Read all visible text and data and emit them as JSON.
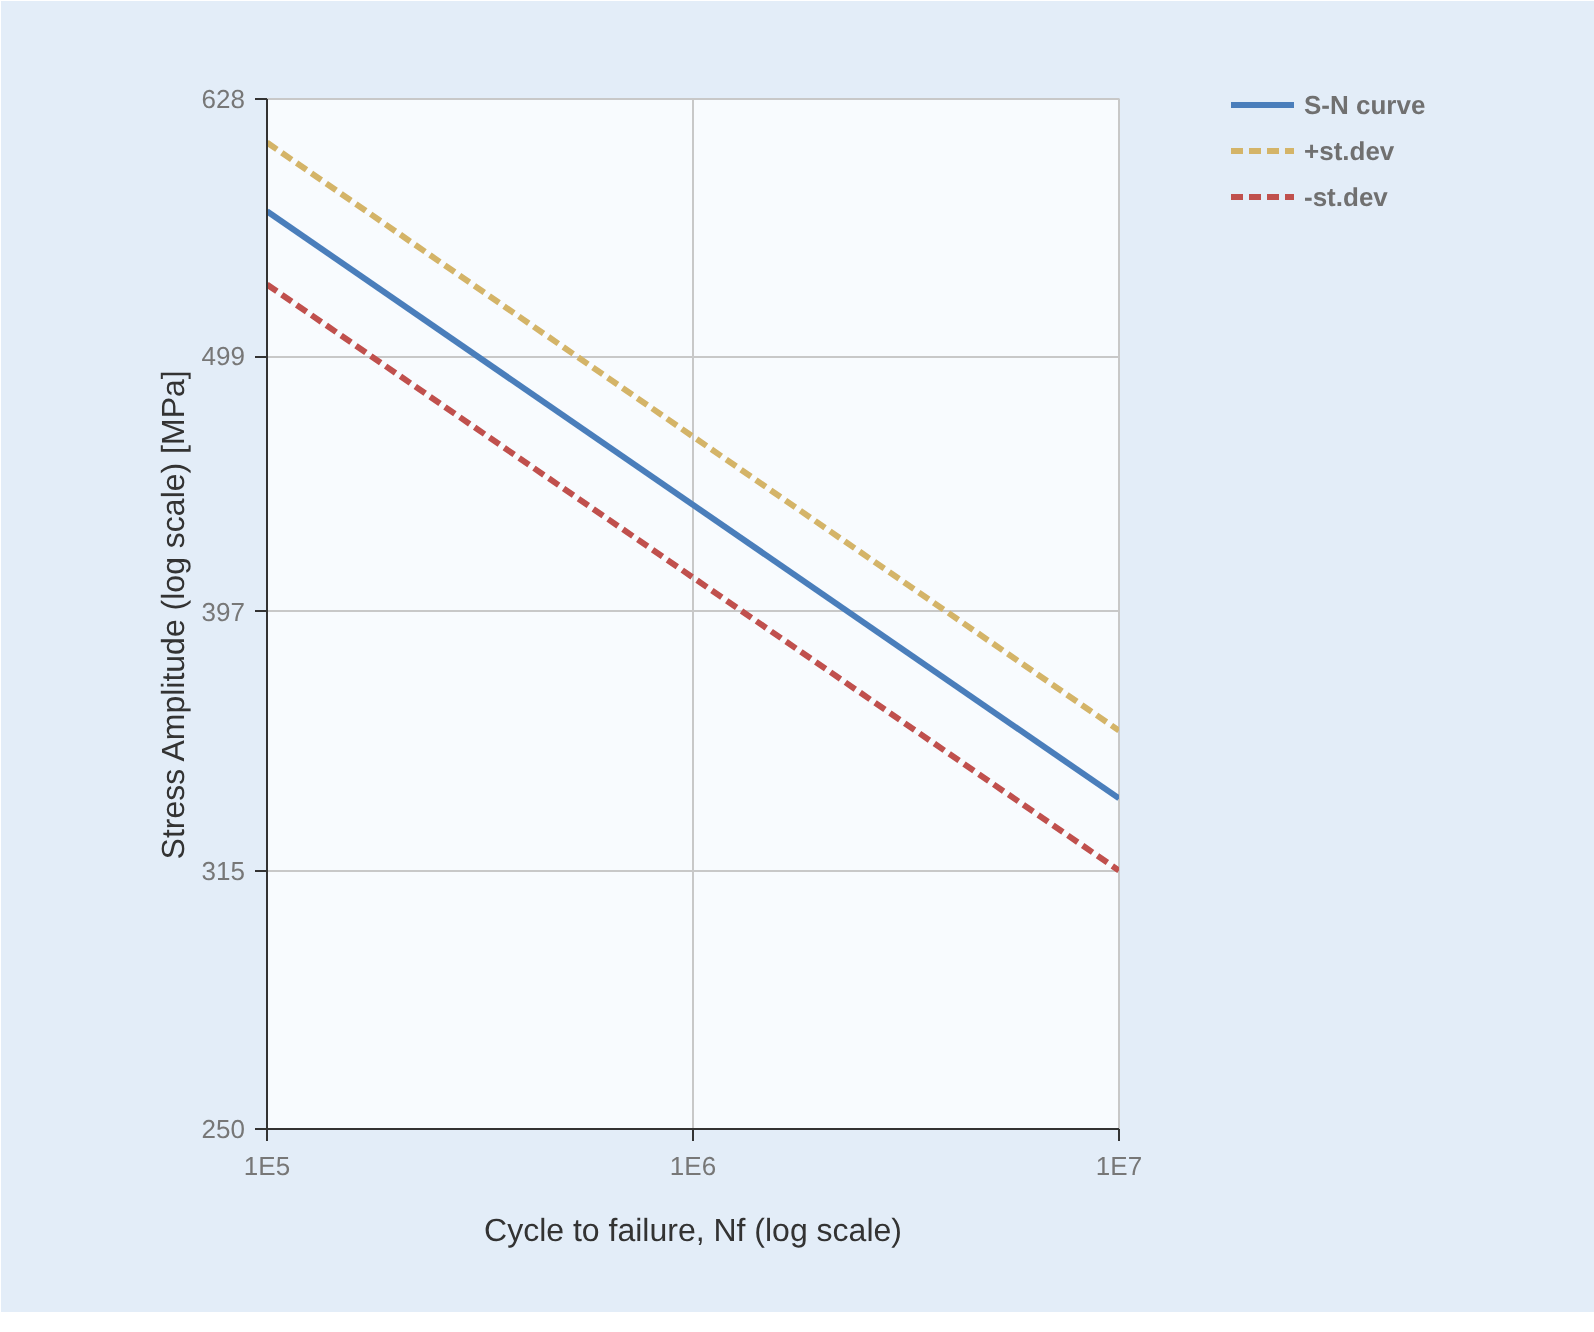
{
  "chart_data": {
    "type": "line",
    "xlabel": "Cycle to failure, Nf (log scale)",
    "ylabel": "Stress Amplitude (log scale) [MPa]",
    "x": [
      100000,
      10000000
    ],
    "xlim": [
      100000,
      10000000
    ],
    "ylim": [
      250,
      628
    ],
    "xticks": [
      {
        "value": 100000,
        "label": "1E5"
      },
      {
        "value": 1000000,
        "label": "1E6"
      },
      {
        "value": 10000000,
        "label": "1E7"
      }
    ],
    "yticks": [
      250,
      315,
      397,
      499,
      628
    ],
    "log": "xy",
    "grid": true,
    "legend": "top right",
    "series": [
      {
        "name": "S-N curve",
        "color": "#4a7ebb",
        "values": [
          568,
          336
        ],
        "line_style": "solid"
      },
      {
        "name": "+st.dev",
        "color": "#d4b468",
        "values": [
          604,
          357
        ],
        "line_style": "dashed"
      },
      {
        "name": "-st.dev",
        "color": "#c0504d",
        "values": [
          532,
          315
        ],
        "line_style": "dashed"
      }
    ]
  }
}
